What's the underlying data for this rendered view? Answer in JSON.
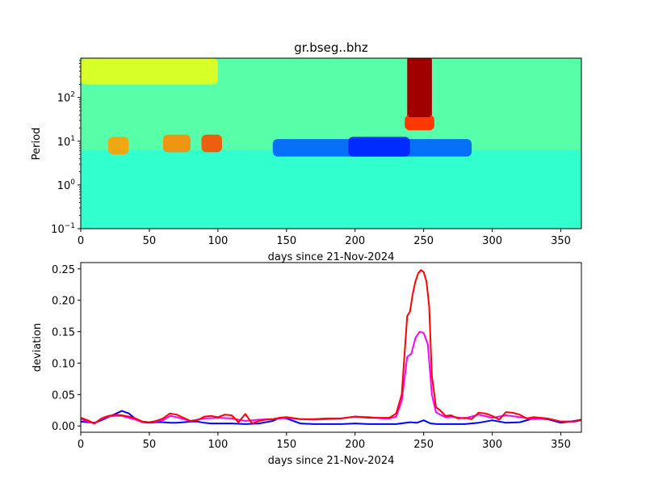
{
  "chart_data": [
    {
      "type": "heatmap",
      "title": "gr.bseg..bhz",
      "xlabel": "days since 21-Nov-2024",
      "ylabel": "Period",
      "xlim": [
        0,
        365
      ],
      "ylim_log10": [
        -1,
        2.9
      ],
      "x_ticks": [
        0,
        50,
        100,
        150,
        200,
        250,
        300,
        350
      ],
      "x_tick_labels": [
        "0",
        "50",
        "100",
        "150",
        "200",
        "250",
        "300",
        "350"
      ],
      "y_tick_values_log10": [
        -1,
        0,
        1,
        2
      ],
      "y_tick_labels": [
        {
          "base": "10",
          "exp": "−1"
        },
        {
          "base": "10",
          "exp": "0"
        },
        {
          "base": "10",
          "exp": "1"
        },
        {
          "base": "10",
          "exp": "2"
        }
      ],
      "colormap": "jet",
      "features": [
        {
          "label": "low-period baseline",
          "x_range": [
            0,
            365
          ],
          "log_period": [
            -1,
            0.8
          ],
          "level": 0.42
        },
        {
          "label": "yellow band near 100 s",
          "x_range": [
            0,
            100
          ],
          "log_period": [
            2.3,
            2.9
          ],
          "level": 0.6
        },
        {
          "label": "orange patch",
          "x_range": [
            20,
            35
          ],
          "log_period": [
            0.7,
            1.1
          ],
          "level": 0.72
        },
        {
          "label": "orange patch",
          "x_range": [
            60,
            80
          ],
          "log_period": [
            0.75,
            1.15
          ],
          "level": 0.74
        },
        {
          "label": "orange patch",
          "x_range": [
            88,
            103
          ],
          "log_period": [
            0.75,
            1.15
          ],
          "level": 0.8
        },
        {
          "label": "blue band",
          "x_range": [
            140,
            285
          ],
          "log_period": [
            0.65,
            1.05
          ],
          "level": 0.22
        },
        {
          "label": "dark blue patch",
          "x_range": [
            195,
            240
          ],
          "log_period": [
            0.65,
            1.1
          ],
          "level": 0.16
        },
        {
          "label": "high-period red event",
          "x_range": [
            238,
            256
          ],
          "log_period": [
            1.35,
            2.9
          ],
          "level": 0.98
        }
      ]
    },
    {
      "type": "line",
      "xlabel": "days since 21-Nov-2024",
      "ylabel": "deviation",
      "xlim": [
        0,
        365
      ],
      "ylim": [
        -0.01,
        0.26
      ],
      "x_ticks": [
        0,
        50,
        100,
        150,
        200,
        250,
        300,
        350
      ],
      "x_tick_labels": [
        "0",
        "50",
        "100",
        "150",
        "200",
        "250",
        "300",
        "350"
      ],
      "y_ticks": [
        0.0,
        0.05,
        0.1,
        0.15,
        0.2,
        0.25
      ],
      "y_tick_labels": [
        "0.00",
        "0.05",
        "0.10",
        "0.15",
        "0.20",
        "0.25"
      ],
      "series": [
        {
          "name": "blue",
          "color": "#0000ff",
          "x": [
            0,
            5,
            10,
            15,
            20,
            25,
            30,
            35,
            40,
            45,
            50,
            55,
            60,
            65,
            70,
            75,
            80,
            85,
            90,
            95,
            100,
            110,
            120,
            130,
            140,
            145,
            150,
            155,
            160,
            170,
            180,
            190,
            200,
            210,
            220,
            230,
            240,
            245,
            250,
            255,
            260,
            270,
            280,
            290,
            300,
            310,
            320,
            330,
            340,
            350,
            360,
            365
          ],
          "values": [
            0.007,
            0.006,
            0.005,
            0.009,
            0.014,
            0.019,
            0.024,
            0.02,
            0.011,
            0.006,
            0.005,
            0.006,
            0.006,
            0.005,
            0.005,
            0.006,
            0.007,
            0.007,
            0.005,
            0.004,
            0.004,
            0.004,
            0.003,
            0.004,
            0.008,
            0.013,
            0.012,
            0.008,
            0.004,
            0.003,
            0.003,
            0.003,
            0.004,
            0.003,
            0.003,
            0.003,
            0.006,
            0.005,
            0.009,
            0.004,
            0.003,
            0.003,
            0.003,
            0.005,
            0.009,
            0.005,
            0.006,
            0.012,
            0.011,
            0.005,
            0.008,
            0.01
          ]
        },
        {
          "name": "magenta",
          "color": "#ff00ff",
          "x": [
            0,
            5,
            10,
            15,
            20,
            25,
            30,
            35,
            40,
            45,
            50,
            55,
            60,
            65,
            70,
            75,
            80,
            90,
            100,
            110,
            120,
            130,
            140,
            150,
            160,
            170,
            180,
            190,
            200,
            210,
            220,
            225,
            230,
            234,
            238,
            241,
            244,
            247,
            250,
            253,
            256,
            259,
            262,
            266,
            270,
            280,
            290,
            300,
            310,
            320,
            330,
            340,
            350,
            360,
            365
          ],
          "values": [
            0.011,
            0.007,
            0.004,
            0.011,
            0.015,
            0.016,
            0.016,
            0.013,
            0.01,
            0.006,
            0.006,
            0.007,
            0.009,
            0.016,
            0.014,
            0.011,
            0.008,
            0.012,
            0.013,
            0.012,
            0.008,
            0.01,
            0.011,
            0.013,
            0.011,
            0.01,
            0.011,
            0.012,
            0.015,
            0.014,
            0.012,
            0.012,
            0.015,
            0.04,
            0.11,
            0.115,
            0.14,
            0.15,
            0.148,
            0.13,
            0.05,
            0.022,
            0.018,
            0.014,
            0.015,
            0.012,
            0.018,
            0.013,
            0.017,
            0.014,
            0.011,
            0.012,
            0.007,
            0.007,
            0.009
          ]
        },
        {
          "name": "red",
          "color": "#ff0000",
          "x": [
            0,
            5,
            10,
            15,
            20,
            25,
            30,
            35,
            40,
            45,
            50,
            55,
            60,
            65,
            70,
            75,
            80,
            85,
            90,
            95,
            100,
            105,
            110,
            115,
            120,
            125,
            130,
            135,
            140,
            145,
            150,
            160,
            170,
            180,
            190,
            200,
            210,
            220,
            225,
            230,
            234,
            238,
            240,
            242,
            244,
            246,
            248,
            250,
            252,
            254,
            256,
            259,
            262,
            266,
            270,
            275,
            280,
            285,
            290,
            295,
            300,
            305,
            310,
            315,
            320,
            325,
            330,
            340,
            350,
            360,
            365
          ],
          "values": [
            0.013,
            0.009,
            0.004,
            0.012,
            0.016,
            0.018,
            0.017,
            0.015,
            0.012,
            0.007,
            0.006,
            0.008,
            0.012,
            0.02,
            0.018,
            0.013,
            0.008,
            0.009,
            0.015,
            0.016,
            0.014,
            0.018,
            0.017,
            0.006,
            0.019,
            0.004,
            0.008,
            0.01,
            0.011,
            0.013,
            0.014,
            0.011,
            0.011,
            0.012,
            0.012,
            0.015,
            0.013,
            0.013,
            0.013,
            0.02,
            0.05,
            0.175,
            0.182,
            0.21,
            0.23,
            0.243,
            0.248,
            0.245,
            0.23,
            0.19,
            0.08,
            0.03,
            0.025,
            0.016,
            0.017,
            0.012,
            0.013,
            0.011,
            0.021,
            0.02,
            0.016,
            0.01,
            0.022,
            0.021,
            0.018,
            0.012,
            0.014,
            0.012,
            0.007,
            0.007,
            0.01
          ]
        }
      ]
    }
  ]
}
